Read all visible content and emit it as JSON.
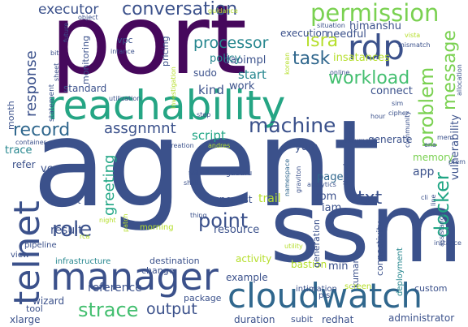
{
  "palette": {
    "purple": "#46085c",
    "indigo": "#3b518b",
    "blue": "#30678d",
    "teal": "#25868e",
    "green": "#21a685",
    "mint": "#44bf70",
    "lime": "#7ad151",
    "yellow": "#b5de2b",
    "gold": "#d8e219"
  },
  "words": [
    {
      "text": "agent",
      "color": "#3b518b"
    },
    {
      "text": "port",
      "color": "#46085c"
    },
    {
      "text": "ssm",
      "color": "#3b518b"
    },
    {
      "text": "reachability",
      "color": "#25a584"
    },
    {
      "text": "manager",
      "color": "#3b518b"
    },
    {
      "text": "cloudwatch",
      "color": "#30678d"
    },
    {
      "text": "rdp",
      "color": "#3b518b"
    },
    {
      "text": "telnet",
      "color": "#3b518b"
    },
    {
      "text": "permission",
      "color": "#7ad151"
    },
    {
      "text": "conversation",
      "color": "#3b518b"
    },
    {
      "text": "executor",
      "color": "#3b518b"
    },
    {
      "text": "docker",
      "color": "#21a685"
    },
    {
      "text": "problem",
      "color": "#7ad151"
    },
    {
      "text": "machine",
      "color": "#3b518b"
    },
    {
      "text": "strace",
      "color": "#44bf70"
    },
    {
      "text": "point",
      "color": "#3b518b"
    },
    {
      "text": "record",
      "color": "#30678d"
    },
    {
      "text": "message",
      "color": "#7ad151"
    },
    {
      "text": "workload",
      "color": "#44bf70"
    },
    {
      "text": "task",
      "color": "#30678d"
    },
    {
      "text": "isra",
      "color": "#b5de2b"
    },
    {
      "text": "processor",
      "color": "#25868e"
    },
    {
      "text": "response",
      "color": "#3b518b"
    },
    {
      "text": "role",
      "color": "#3b518b"
    },
    {
      "text": "assgnmnt",
      "color": "#3b518b"
    },
    {
      "text": "output",
      "color": "#3b518b"
    },
    {
      "text": "greeting",
      "color": "#21a685"
    },
    {
      "text": "txt",
      "color": "#3b518b"
    },
    {
      "text": "vulnerability",
      "color": "#3b518b"
    },
    {
      "text": "himanshu",
      "color": "#3b518b"
    },
    {
      "text": "daoimpl",
      "color": "#3b518b"
    },
    {
      "text": "policy",
      "color": "#25868e"
    },
    {
      "text": "insatances",
      "color": "#b5de2b"
    },
    {
      "text": "needful",
      "color": "#3b518b"
    },
    {
      "text": "execution",
      "color": "#3b518b"
    },
    {
      "text": "start",
      "color": "#25868e"
    },
    {
      "text": "work",
      "color": "#3b518b"
    },
    {
      "text": "kind",
      "color": "#3b518b"
    },
    {
      "text": "script",
      "color": "#21a685"
    },
    {
      "text": "yum",
      "color": "#3b518b"
    },
    {
      "text": "generate",
      "color": "#3b518b"
    },
    {
      "text": "connect",
      "color": "#3b518b"
    },
    {
      "text": "app",
      "color": "#3b518b"
    },
    {
      "text": "memory",
      "color": "#7ad151"
    },
    {
      "text": "page",
      "color": "#30678d"
    },
    {
      "text": "rpm",
      "color": "#3b518b"
    },
    {
      "text": "trail",
      "color": "#b5de2b"
    },
    {
      "text": "persist",
      "color": "#3b518b"
    },
    {
      "text": "iam",
      "color": "#3b518b"
    },
    {
      "text": "resource",
      "color": "#3b518b"
    },
    {
      "text": "result",
      "color": "#3b518b"
    },
    {
      "text": "vcpu",
      "color": "#3b518b"
    },
    {
      "text": "trace",
      "color": "#25868e"
    },
    {
      "text": "refer",
      "color": "#3b518b"
    },
    {
      "text": "month",
      "color": "#3b518b"
    },
    {
      "text": "standard",
      "color": "#3b518b"
    },
    {
      "text": "monitoring",
      "color": "#3b518b"
    },
    {
      "text": "vpc",
      "color": "#3b518b"
    },
    {
      "text": "pricing",
      "color": "#3b518b"
    },
    {
      "text": "sudo",
      "color": "#3b518b"
    },
    {
      "text": "min",
      "color": "#3b518b"
    },
    {
      "text": "kumar",
      "color": "#3b518b"
    },
    {
      "text": "reference",
      "color": "#3b518b"
    },
    {
      "text": "wizard",
      "color": "#3b518b"
    },
    {
      "text": "xlarge",
      "color": "#3b518b"
    },
    {
      "text": "duration",
      "color": "#3b518b"
    },
    {
      "text": "subit",
      "color": "#3b518b"
    },
    {
      "text": "redhat",
      "color": "#3b518b"
    },
    {
      "text": "administrator",
      "color": "#3b518b"
    },
    {
      "text": "example",
      "color": "#3b518b"
    },
    {
      "text": "bastion",
      "color": "#b5de2b"
    },
    {
      "text": "activity",
      "color": "#b5de2b"
    },
    {
      "text": "generation",
      "color": "#3b518b"
    },
    {
      "text": "connectivity",
      "color": "#3b518b"
    },
    {
      "text": "deployment",
      "color": "#25868e"
    },
    {
      "text": "custom",
      "color": "#3b518b"
    },
    {
      "text": "intimation",
      "color": "#3b518b"
    },
    {
      "text": "screen",
      "color": "#b5de2b"
    },
    {
      "text": "pls",
      "color": "#3b518b"
    },
    {
      "text": "package",
      "color": "#3b518b"
    },
    {
      "text": "destination",
      "color": "#3b518b"
    },
    {
      "text": "change",
      "color": "#3b518b"
    },
    {
      "text": "morning",
      "color": "#b5de2b"
    },
    {
      "text": "infrastructure",
      "color": "#25868e"
    },
    {
      "text": "tool",
      "color": "#3b518b"
    },
    {
      "text": "view",
      "color": "#3b518b"
    },
    {
      "text": "pipeline",
      "color": "#3b518b"
    },
    {
      "text": "august",
      "color": "#3b518b"
    },
    {
      "text": "container",
      "color": "#3b518b"
    },
    {
      "text": "statement",
      "color": "#3b518b"
    },
    {
      "text": "creation",
      "color": "#3b518b"
    },
    {
      "text": "andres",
      "color": "#b5de2b"
    },
    {
      "text": "fail",
      "color": "#3b518b"
    },
    {
      "text": "shell",
      "color": "#3b518b"
    },
    {
      "text": "guduru",
      "color": "#3b518b"
    },
    {
      "text": "thing",
      "color": "#3b518b"
    },
    {
      "text": "patch",
      "color": "#b5de2b"
    },
    {
      "text": "night",
      "color": "#b5de2b"
    },
    {
      "text": "rca",
      "color": "#b5de2b"
    },
    {
      "text": "utility",
      "color": "#b5de2b"
    },
    {
      "text": "analytics",
      "color": "#3b518b"
    },
    {
      "text": "graviton",
      "color": "#3b518b"
    },
    {
      "text": "namespace",
      "color": "#30678d"
    },
    {
      "text": "thread",
      "color": "#3b518b"
    },
    {
      "text": "cli",
      "color": "#3b518b"
    },
    {
      "text": "line",
      "color": "#3b518b"
    },
    {
      "text": "assistance",
      "color": "#3b518b"
    },
    {
      "text": "community",
      "color": "#3b518b"
    },
    {
      "text": "ena",
      "color": "#3b518b"
    },
    {
      "text": "mem",
      "color": "#3b518b"
    },
    {
      "text": "cipher",
      "color": "#3b518b"
    },
    {
      "text": "sim",
      "color": "#3b518b"
    },
    {
      "text": "doc",
      "color": "#3b518b"
    },
    {
      "text": "document",
      "color": "#3b518b"
    },
    {
      "text": "online",
      "color": "#3b518b"
    },
    {
      "text": "allocation",
      "color": "#3b518b"
    },
    {
      "text": "mismatch",
      "color": "#3b518b"
    },
    {
      "text": "situation",
      "color": "#3b518b"
    },
    {
      "text": "korean",
      "color": "#b5de2b"
    },
    {
      "text": "guidance",
      "color": "#b5de2b"
    },
    {
      "text": "object",
      "color": "#3b518b"
    },
    {
      "text": "investigation",
      "color": "#b5de2b"
    },
    {
      "text": "utilization",
      "color": "#3b518b"
    },
    {
      "text": "intance",
      "color": "#3b518b"
    },
    {
      "text": "sheet",
      "color": "#3b518b"
    },
    {
      "text": "bit",
      "color": "#3b518b"
    },
    {
      "text": "future",
      "color": "#3b518b"
    },
    {
      "text": "prem",
      "color": "#3b518b"
    },
    {
      "text": "vista",
      "color": "#b5de2b"
    },
    {
      "text": "hour",
      "color": "#3b518b"
    },
    {
      "text": "step",
      "color": "#3b518b"
    },
    {
      "text": "instance",
      "color": "#3b518b"
    }
  ]
}
